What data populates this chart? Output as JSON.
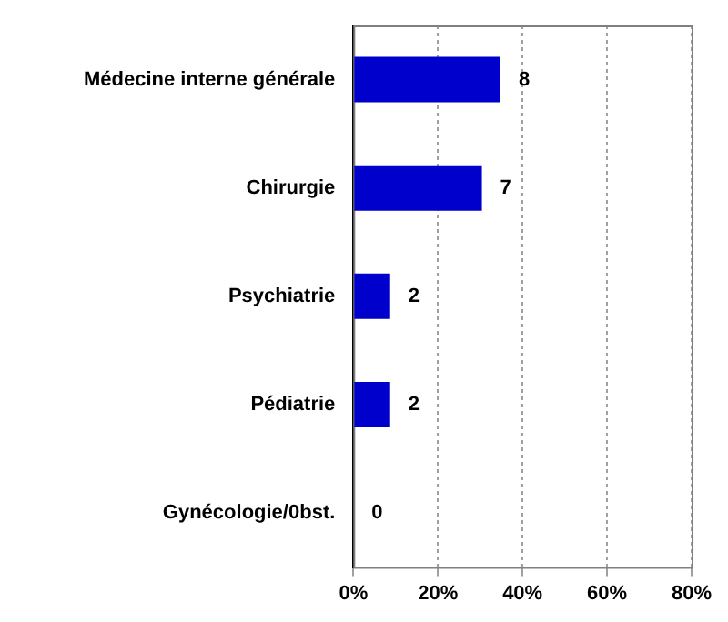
{
  "chart_data": {
    "type": "bar",
    "orientation": "horizontal",
    "categories": [
      "Médecine interne générale",
      "Chirurgie",
      "Psychiatrie",
      "Pédiatrie",
      "Gynécologie/0bst."
    ],
    "values": [
      34.8,
      30.4,
      8.7,
      8.7,
      0
    ],
    "annotations": [
      {
        "text": "8",
        "x": 34.8,
        "y": "Médecine interne générale"
      },
      {
        "text": "7",
        "x": 30.4,
        "y": "Chirurgie"
      },
      {
        "text": "2",
        "x": 8.7,
        "y": "Psychiatrie"
      },
      {
        "text": "2",
        "x": 8.7,
        "y": "Pédiatrie"
      },
      {
        "text": "0",
        "x": 0,
        "y": "Gynécologie/0bst."
      }
    ],
    "color": "#0000cc",
    "xlim": [
      0,
      80
    ],
    "xticks": [
      {
        "value": 0,
        "label": "0%"
      },
      {
        "value": 20,
        "label": "20%"
      },
      {
        "value": 40,
        "label": "40%"
      },
      {
        "value": 60,
        "label": "60%"
      },
      {
        "value": 80,
        "label": "80%"
      }
    ],
    "grid": "x",
    "legend": false
  }
}
